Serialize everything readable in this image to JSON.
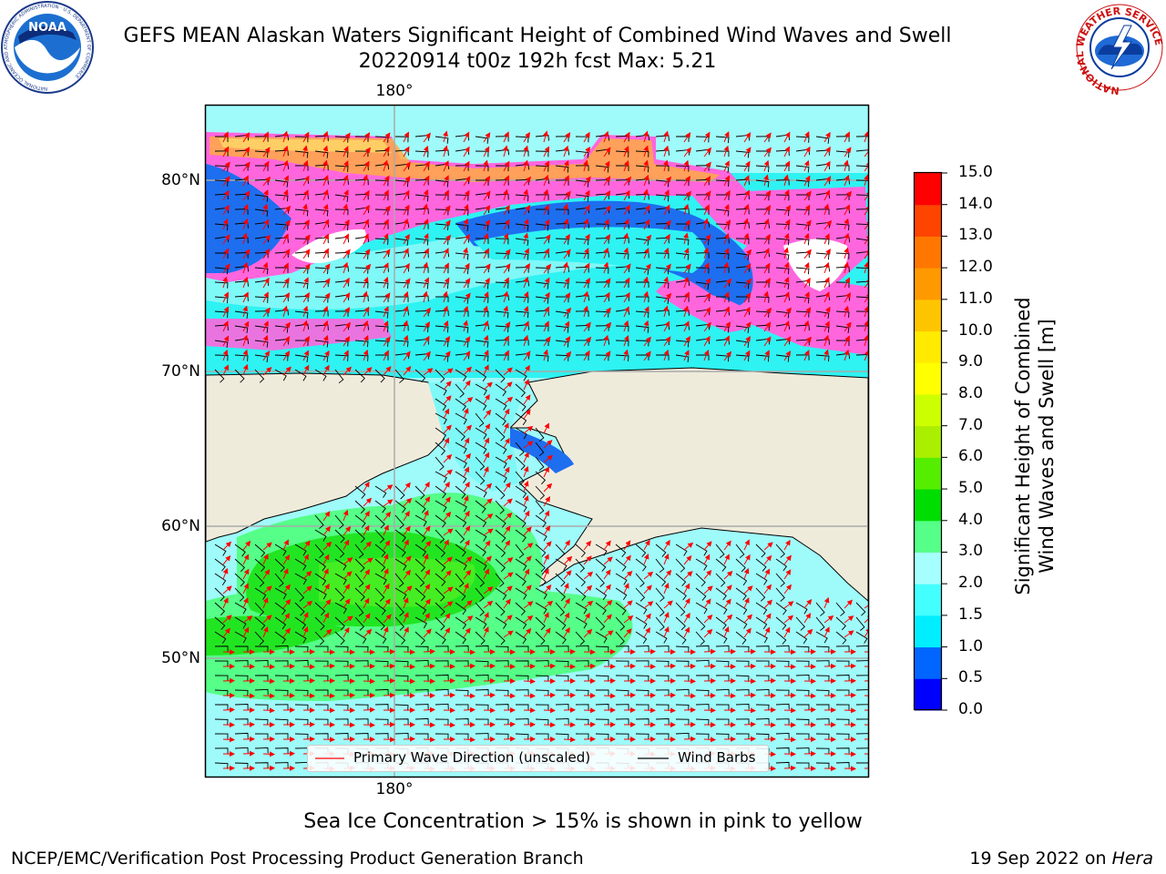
{
  "header": {
    "title_line1": "GEFS MEAN Alaskan Waters Significant Height of Combined Wind Waves and Swell",
    "title_line2": "20220914 t00z 192h fcst   Max: 5.21"
  },
  "logos": {
    "noaa_text": "NOAA",
    "noaa_ring_text": "NATIONAL OCEANIC AND ATMOSPHERIC ADMINISTRATION · U.S. DEPARTMENT OF COMMERCE",
    "nws_ring_text": "NATIONAL WEATHER SERVICE"
  },
  "map": {
    "lon_label_top": "180°",
    "lon_label_bottom": "180°",
    "lat_labels": [
      "80°N",
      "70°N",
      "60°N",
      "50°N"
    ]
  },
  "legend": {
    "wave_direction": "Primary Wave Direction (unscaled)",
    "wind_barbs": "Wind Barbs"
  },
  "colorbar": {
    "title_line1": "Significant Height of Combined",
    "title_line2": "Wind Waves and Swell [m]",
    "ticks": [
      "0.0",
      "0.5",
      "1.0",
      "1.5",
      "2.0",
      "3.0",
      "4.0",
      "5.0",
      "6.0",
      "7.0",
      "8.0",
      "9.0",
      "10.0",
      "11.0",
      "12.0",
      "13.0",
      "14.0",
      "15.0"
    ],
    "colors": [
      "#0000ff",
      "#0066ff",
      "#00eeff",
      "#44ffff",
      "#a6ffff",
      "#55ff88",
      "#00dd00",
      "#55ee00",
      "#aaee00",
      "#ccff00",
      "#ffff00",
      "#ffea00",
      "#ffc400",
      "#ff9900",
      "#ff7700",
      "#ff4400",
      "#ff0000"
    ]
  },
  "footer": {
    "ice_note": "Sea Ice Concentration > 15% is shown in pink to yellow",
    "left": "NCEP/EMC/Verification Post Processing Product Generation Branch",
    "right_date": "19 Sep 2022 on ",
    "right_host": "Hera"
  }
}
